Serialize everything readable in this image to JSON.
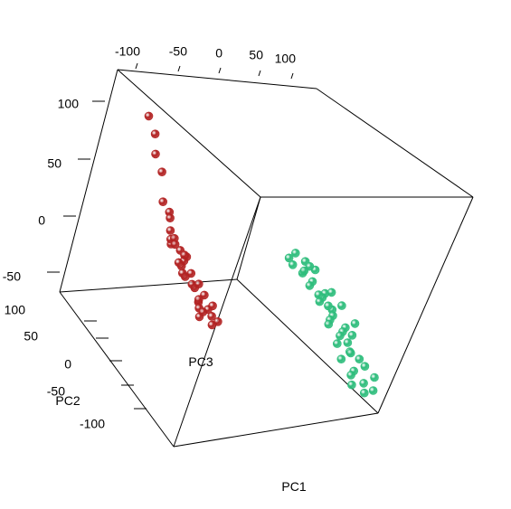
{
  "chart_data": {
    "type": "scatter",
    "projection": "3d",
    "axes": {
      "x": {
        "label": "PC1",
        "ticks": [
          "-100",
          "-50",
          "0",
          "50",
          "100"
        ]
      },
      "y": {
        "label": "PC2",
        "ticks": [
          "100",
          "50",
          "0",
          "-50",
          "-100"
        ]
      },
      "z": {
        "label": "PC3",
        "ticks": [
          "100",
          "50",
          "0",
          "-50"
        ]
      }
    },
    "series": [
      {
        "color": "#b22222",
        "points": [
          [
            -100,
            90,
            120
          ],
          [
            -95,
            85,
            100
          ],
          [
            -100,
            80,
            75
          ],
          [
            -95,
            75,
            55
          ],
          [
            -110,
            60,
            20
          ],
          [
            -105,
            55,
            10
          ],
          [
            -115,
            45,
            5
          ],
          [
            -120,
            40,
            -10
          ],
          [
            -130,
            30,
            -25
          ],
          [
            -125,
            35,
            -20
          ],
          [
            -115,
            30,
            -30
          ],
          [
            -110,
            25,
            -35
          ],
          [
            -120,
            20,
            -40
          ],
          [
            -130,
            25,
            -15
          ],
          [
            -140,
            15,
            -20
          ],
          [
            -135,
            10,
            -45
          ],
          [
            -125,
            5,
            -50
          ],
          [
            -145,
            5,
            -40
          ],
          [
            -140,
            0,
            -55
          ],
          [
            -150,
            -5,
            -50
          ],
          [
            -130,
            -5,
            -65
          ],
          [
            -120,
            -10,
            -70
          ],
          [
            -135,
            -15,
            -80
          ],
          [
            -125,
            -20,
            -85
          ],
          [
            -140,
            -20,
            -75
          ],
          [
            -145,
            -25,
            -85
          ],
          [
            -130,
            -30,
            -90
          ],
          [
            -120,
            -30,
            -95
          ],
          [
            -135,
            -35,
            -100
          ],
          [
            -140,
            -10,
            -60
          ],
          [
            -150,
            -30,
            -95
          ],
          [
            -118,
            0,
            -60
          ],
          [
            -112,
            -15,
            -80
          ],
          [
            -128,
            12,
            -30
          ],
          [
            -142,
            -28,
            -88
          ]
        ]
      },
      {
        "color": "#2ebd7c",
        "points": [
          [
            95,
            60,
            -10
          ],
          [
            100,
            55,
            0
          ],
          [
            90,
            50,
            -15
          ],
          [
            105,
            45,
            -5
          ],
          [
            95,
            40,
            -20
          ],
          [
            110,
            35,
            -10
          ],
          [
            100,
            30,
            -25
          ],
          [
            90,
            25,
            -30
          ],
          [
            115,
            25,
            -35
          ],
          [
            105,
            20,
            -40
          ],
          [
            95,
            15,
            -45
          ],
          [
            110,
            10,
            -50
          ],
          [
            120,
            5,
            -40
          ],
          [
            100,
            0,
            -55
          ],
          [
            90,
            -5,
            -60
          ],
          [
            115,
            -5,
            -65
          ],
          [
            105,
            -10,
            -70
          ],
          [
            95,
            -15,
            -75
          ],
          [
            125,
            -10,
            -55
          ],
          [
            85,
            -20,
            -85
          ],
          [
            100,
            -25,
            -90
          ],
          [
            110,
            -30,
            -95
          ],
          [
            75,
            -35,
            -100
          ],
          [
            90,
            -40,
            -110
          ],
          [
            80,
            -45,
            -115
          ],
          [
            95,
            -50,
            -120
          ],
          [
            70,
            -55,
            -125
          ],
          [
            105,
            -55,
            -125
          ],
          [
            85,
            -60,
            -130
          ],
          [
            115,
            -15,
            -70
          ],
          [
            92,
            35,
            -15
          ],
          [
            98,
            5,
            -45
          ],
          [
            108,
            -40,
            -100
          ],
          [
            120,
            20,
            -30
          ],
          [
            88,
            10,
            -35
          ],
          [
            102,
            -20,
            -80
          ],
          [
            112,
            45,
            -10
          ],
          [
            96,
            -30,
            -90
          ],
          [
            82,
            -10,
            -65
          ],
          [
            118,
            -45,
            -110
          ]
        ]
      }
    ]
  }
}
